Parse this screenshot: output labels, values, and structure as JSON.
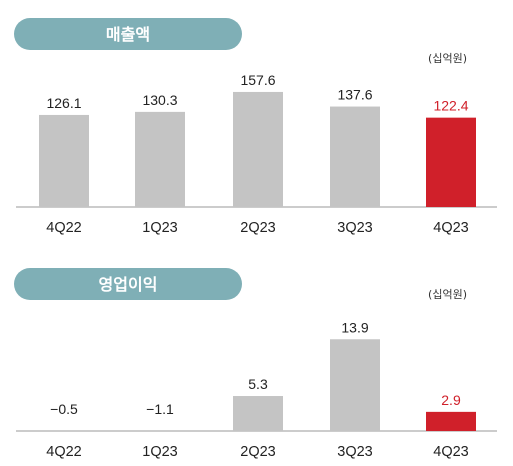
{
  "chart_data": [
    {
      "type": "bar",
      "title": "매출액",
      "unit": "(십억원)",
      "categories": [
        "4Q22",
        "1Q23",
        "2Q23",
        "3Q23",
        "4Q23"
      ],
      "values": [
        126.1,
        130.3,
        157.6,
        137.6,
        122.4
      ],
      "value_labels": [
        "126.1",
        "130.3",
        "157.6",
        "137.6",
        "122.4"
      ],
      "highlight_index": 4,
      "ylim": [
        0,
        160
      ]
    },
    {
      "type": "bar",
      "title": "영업이익",
      "unit": "(십억원)",
      "categories": [
        "4Q22",
        "1Q23",
        "2Q23",
        "3Q23",
        "4Q23"
      ],
      "values": [
        -0.5,
        -1.1,
        5.3,
        13.9,
        2.9
      ],
      "value_labels": [
        "−0.5",
        "−1.1",
        "5.3",
        "13.9",
        "2.9"
      ],
      "highlight_index": 4,
      "ylim": [
        0,
        14
      ]
    }
  ],
  "colors": {
    "pill": "#7fafb6",
    "bar": "#c4c4c4",
    "highlight": "#d0202a",
    "text": "#222222",
    "axis": "#999999"
  }
}
